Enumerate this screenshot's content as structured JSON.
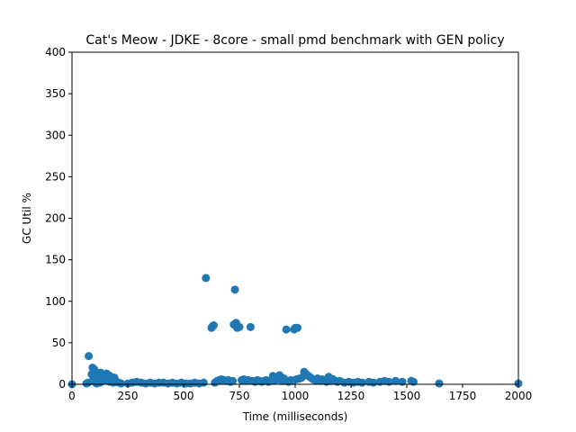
{
  "chart_data": {
    "type": "scatter",
    "title": "Cat's Meow - JDKE - 8core -  small pmd benchmark with GEN policy",
    "xlabel": "Time (milliseconds)",
    "ylabel": "GC Util %",
    "xlim": [
      0,
      2000
    ],
    "ylim": [
      0,
      400
    ],
    "xticks": [
      0,
      250,
      500,
      750,
      1000,
      1250,
      1500,
      1750,
      2000
    ],
    "yticks": [
      0,
      50,
      100,
      150,
      200,
      250,
      300,
      350,
      400
    ],
    "grid": false,
    "marker_color": "#1f77b4",
    "series": [
      {
        "x": [
          0,
          65,
          72,
          75,
          88,
          92,
          95,
          98,
          100,
          102,
          105,
          108,
          110,
          112,
          115,
          118,
          120,
          125,
          128,
          130,
          135,
          140,
          145,
          150,
          155,
          160,
          165,
          170,
          175,
          180,
          185,
          190,
          195,
          200,
          210,
          220,
          250,
          270,
          290,
          310,
          330,
          350,
          370,
          390,
          410,
          430,
          450,
          470,
          490,
          510,
          530,
          550,
          570,
          590,
          600,
          625,
          630,
          635,
          640,
          650,
          660,
          670,
          680,
          690,
          700,
          710,
          720,
          725,
          730,
          735,
          740,
          750,
          760,
          770,
          780,
          790,
          800,
          810,
          820,
          830,
          840,
          850,
          860,
          870,
          880,
          890,
          900,
          910,
          920,
          930,
          940,
          950,
          960,
          970,
          980,
          990,
          995,
          1000,
          1005,
          1010,
          1020,
          1030,
          1040,
          1050,
          1060,
          1070,
          1080,
          1090,
          1100,
          1110,
          1120,
          1130,
          1140,
          1150,
          1160,
          1170,
          1180,
          1190,
          1200,
          1220,
          1240,
          1260,
          1280,
          1300,
          1330,
          1350,
          1380,
          1400,
          1420,
          1450,
          1480,
          1520,
          1530,
          1645,
          2000
        ],
        "y": [
          0,
          1,
          2,
          34,
          12,
          20,
          5,
          8,
          18,
          3,
          15,
          10,
          1,
          6,
          12,
          3,
          9,
          2,
          14,
          7,
          11,
          4,
          8,
          12,
          13,
          6,
          11,
          3,
          9,
          5,
          2,
          8,
          4,
          3,
          2,
          1,
          1,
          2,
          3,
          2,
          1,
          2,
          1,
          2,
          2,
          1,
          2,
          1,
          2,
          1,
          1,
          2,
          1,
          2,
          128,
          68,
          70,
          71,
          2,
          4,
          5,
          6,
          5,
          4,
          5,
          3,
          4,
          72,
          114,
          74,
          68,
          69,
          5,
          6,
          4,
          5,
          69,
          4,
          3,
          5,
          4,
          3,
          4,
          5,
          3,
          4,
          10,
          5,
          6,
          11,
          4,
          7,
          66,
          3,
          5,
          4,
          66,
          68,
          6,
          68,
          7,
          8,
          15,
          12,
          10,
          8,
          6,
          5,
          7,
          4,
          6,
          5,
          3,
          9,
          4,
          6,
          4,
          3,
          4,
          2,
          3,
          2,
          3,
          2,
          3,
          2,
          3,
          4,
          3,
          4,
          3,
          4,
          3,
          1,
          1
        ]
      }
    ]
  }
}
